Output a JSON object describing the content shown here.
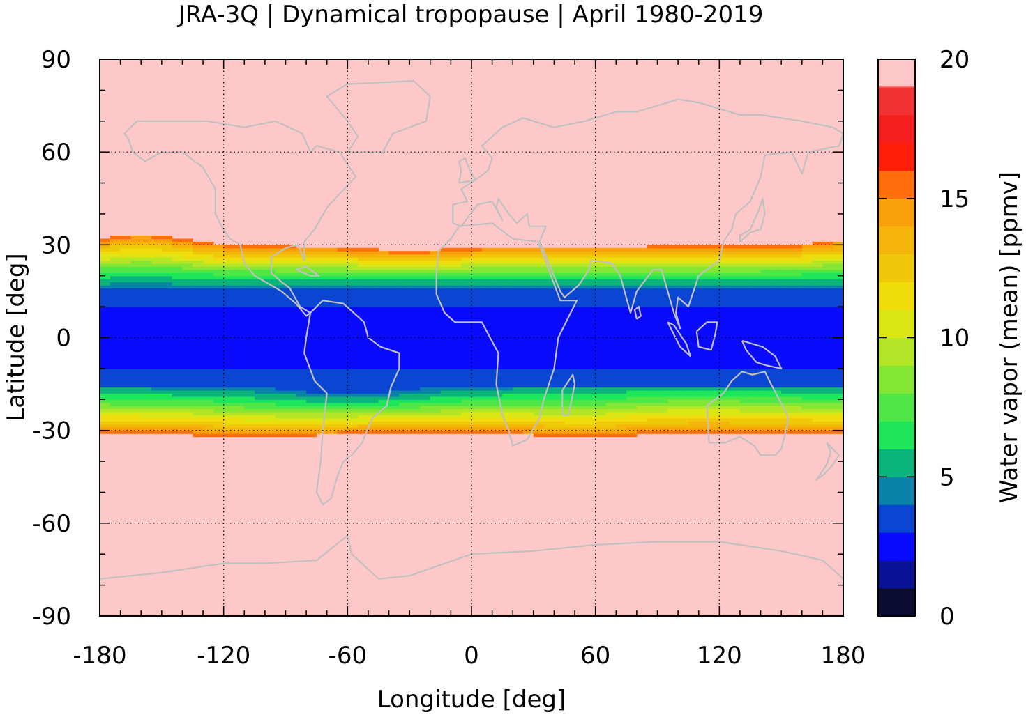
{
  "chart_data": {
    "type": "heatmap",
    "title": "JRA-3Q | Dynamical tropopause | April 1980-2019",
    "xlabel": "Longitude [deg]",
    "ylabel": "Latitude [deg]",
    "xlim": [
      -180,
      180
    ],
    "ylim": [
      -90,
      90
    ],
    "x_ticks": [
      -180,
      -120,
      -60,
      0,
      60,
      120,
      180
    ],
    "y_ticks": [
      -90,
      -60,
      -30,
      0,
      30,
      60,
      90
    ],
    "x_tick_labels": [
      "-180",
      "-120",
      "-60",
      "0",
      "60",
      "120",
      "180"
    ],
    "y_tick_labels": [
      "-90",
      "-60",
      "-30",
      "0",
      "30",
      "60",
      "90"
    ],
    "grid": true,
    "overlay": "coastlines",
    "coastline_color": "#c0c0c0",
    "colorbar": {
      "label": "Water vapor (mean) [ppmv]",
      "range": [
        0,
        20
      ],
      "ticks": [
        0,
        5,
        10,
        15,
        20
      ],
      "tick_labels": [
        "0",
        "5",
        "10",
        "15",
        "20"
      ],
      "levels": [
        0,
        1,
        2,
        3,
        4,
        5,
        6,
        7,
        8,
        9,
        10,
        11,
        12,
        13,
        14,
        15,
        16,
        17,
        18,
        19,
        20
      ],
      "colors": [
        "#0c0c30",
        "#0a1296",
        "#0a0aff",
        "#0a46d2",
        "#0a82aa",
        "#0ab47a",
        "#1ee65a",
        "#50e646",
        "#82e632",
        "#b4e628",
        "#dce614",
        "#f0dc0a",
        "#f0c80a",
        "#f5b40a",
        "#faa00a",
        "#ff6e0a",
        "#ff1e0a",
        "#f51e1e",
        "#f03232",
        "#f57878"
      ],
      "over_color": "#ffc8c8"
    },
    "field_summary": {
      "description_values_ppmv": "Zonal band structure",
      "equatorial_core_lat": [
        -10,
        10
      ],
      "equatorial_core_value": 2.5,
      "inner_band_value": 3.5,
      "gradient_band_lat": [
        -30,
        30
      ],
      "subtropical_edge_value": 16,
      "extratropics_value": "above 20"
    }
  }
}
